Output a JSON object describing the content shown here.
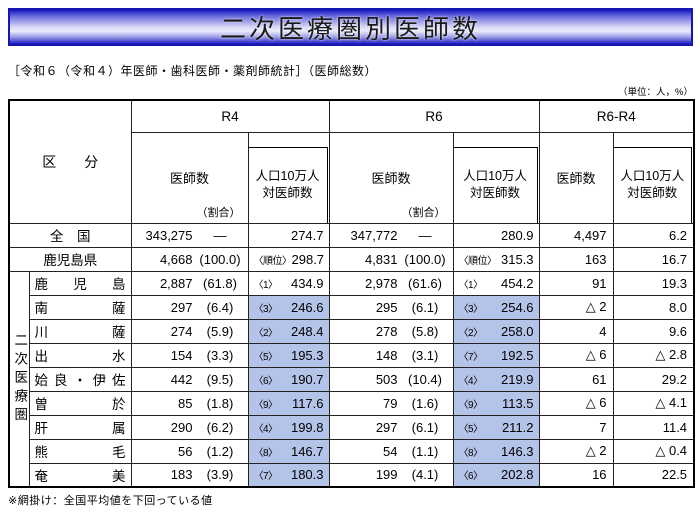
{
  "title": "二次医療圏別医師数",
  "subtitle": "［令和６（令和４）年医師・歯科医師・薬剤師統計］（医師総数）",
  "unit_note": "（単位：人，%）",
  "footnote": "※網掛け：全国平均値を下回っている値",
  "highlight_color": "#b4c3e8",
  "table": {
    "corner_label": "区　　分",
    "side_label": "二次医療圏",
    "groups": [
      {
        "label": "R4"
      },
      {
        "label": "R6"
      },
      {
        "label": "R6-R4"
      }
    ],
    "sub": {
      "doctors": "医師数",
      "ratio_label": "（割合）",
      "per_capita_line1": "人口10万人",
      "per_capita_line2": "対医師数"
    },
    "rows": [
      {
        "type": "nation",
        "label": "全　国",
        "r4": {
          "doctors": "343,275",
          "ratio": "—",
          "rank": "",
          "per_capita": "274.7",
          "shaded": false
        },
        "r6": {
          "doctors": "347,772",
          "ratio": "—",
          "rank": "",
          "per_capita": "280.9",
          "shaded": false
        },
        "diff": {
          "doctors": "4,497",
          "per_capita": "6.2"
        }
      },
      {
        "type": "pref",
        "label": "鹿児島県",
        "r4": {
          "doctors": "4,668",
          "ratio": "(100.0)",
          "rank": "〈順位〉",
          "per_capita": "298.7",
          "shaded": false
        },
        "r6": {
          "doctors": "4,831",
          "ratio": "(100.0)",
          "rank": "〈順位〉",
          "per_capita": "315.3",
          "shaded": false
        },
        "diff": {
          "doctors": "163",
          "per_capita": "16.7"
        }
      },
      {
        "type": "region",
        "label": "鹿児島",
        "r4": {
          "doctors": "2,887",
          "ratio": "(61.8)",
          "rank": "〈1〉",
          "per_capita": "434.9",
          "shaded": false
        },
        "r6": {
          "doctors": "2,978",
          "ratio": "(61.6)",
          "rank": "〈1〉",
          "per_capita": "454.2",
          "shaded": false
        },
        "diff": {
          "doctors": "91",
          "per_capita": "19.3"
        }
      },
      {
        "type": "region",
        "label": "南薩",
        "r4": {
          "doctors": "297",
          "ratio": "(6.4)",
          "rank": "〈3〉",
          "per_capita": "246.6",
          "shaded": true
        },
        "r6": {
          "doctors": "295",
          "ratio": "(6.1)",
          "rank": "〈3〉",
          "per_capita": "254.6",
          "shaded": true
        },
        "diff": {
          "doctors": "△ 2",
          "per_capita": "8.0"
        }
      },
      {
        "type": "region",
        "label": "川薩",
        "r4": {
          "doctors": "274",
          "ratio": "(5.9)",
          "rank": "〈2〉",
          "per_capita": "248.4",
          "shaded": true
        },
        "r6": {
          "doctors": "278",
          "ratio": "(5.8)",
          "rank": "〈2〉",
          "per_capita": "258.0",
          "shaded": true
        },
        "diff": {
          "doctors": "4",
          "per_capita": "9.6"
        }
      },
      {
        "type": "region",
        "label": "出水",
        "r4": {
          "doctors": "154",
          "ratio": "(3.3)",
          "rank": "〈5〉",
          "per_capita": "195.3",
          "shaded": true
        },
        "r6": {
          "doctors": "148",
          "ratio": "(3.1)",
          "rank": "〈7〉",
          "per_capita": "192.5",
          "shaded": true
        },
        "diff": {
          "doctors": "△ 6",
          "per_capita": "△ 2.8"
        }
      },
      {
        "type": "region",
        "label": "姶良・伊佐",
        "r4": {
          "doctors": "442",
          "ratio": "(9.5)",
          "rank": "〈6〉",
          "per_capita": "190.7",
          "shaded": true
        },
        "r6": {
          "doctors": "503",
          "ratio": "(10.4)",
          "rank": "〈4〉",
          "per_capita": "219.9",
          "shaded": true
        },
        "diff": {
          "doctors": "61",
          "per_capita": "29.2"
        }
      },
      {
        "type": "region",
        "label": "曽於",
        "r4": {
          "doctors": "85",
          "ratio": "(1.8)",
          "rank": "〈9〉",
          "per_capita": "117.6",
          "shaded": true
        },
        "r6": {
          "doctors": "79",
          "ratio": "(1.6)",
          "rank": "〈9〉",
          "per_capita": "113.5",
          "shaded": true
        },
        "diff": {
          "doctors": "△ 6",
          "per_capita": "△ 4.1"
        }
      },
      {
        "type": "region",
        "label": "肝属",
        "r4": {
          "doctors": "290",
          "ratio": "(6.2)",
          "rank": "〈4〉",
          "per_capita": "199.8",
          "shaded": true
        },
        "r6": {
          "doctors": "297",
          "ratio": "(6.1)",
          "rank": "〈5〉",
          "per_capita": "211.2",
          "shaded": true
        },
        "diff": {
          "doctors": "7",
          "per_capita": "11.4"
        }
      },
      {
        "type": "region",
        "label": "熊毛",
        "r4": {
          "doctors": "56",
          "ratio": "(1.2)",
          "rank": "〈8〉",
          "per_capita": "146.7",
          "shaded": true
        },
        "r6": {
          "doctors": "54",
          "ratio": "(1.1)",
          "rank": "〈8〉",
          "per_capita": "146.3",
          "shaded": true
        },
        "diff": {
          "doctors": "△ 2",
          "per_capita": "△ 0.4"
        }
      },
      {
        "type": "region",
        "label": "奄美",
        "r4": {
          "doctors": "183",
          "ratio": "(3.9)",
          "rank": "〈7〉",
          "per_capita": "180.3",
          "shaded": true
        },
        "r6": {
          "doctors": "199",
          "ratio": "(4.1)",
          "rank": "〈6〉",
          "per_capita": "202.8",
          "shaded": true
        },
        "diff": {
          "doctors": "16",
          "per_capita": "22.5"
        }
      }
    ]
  }
}
